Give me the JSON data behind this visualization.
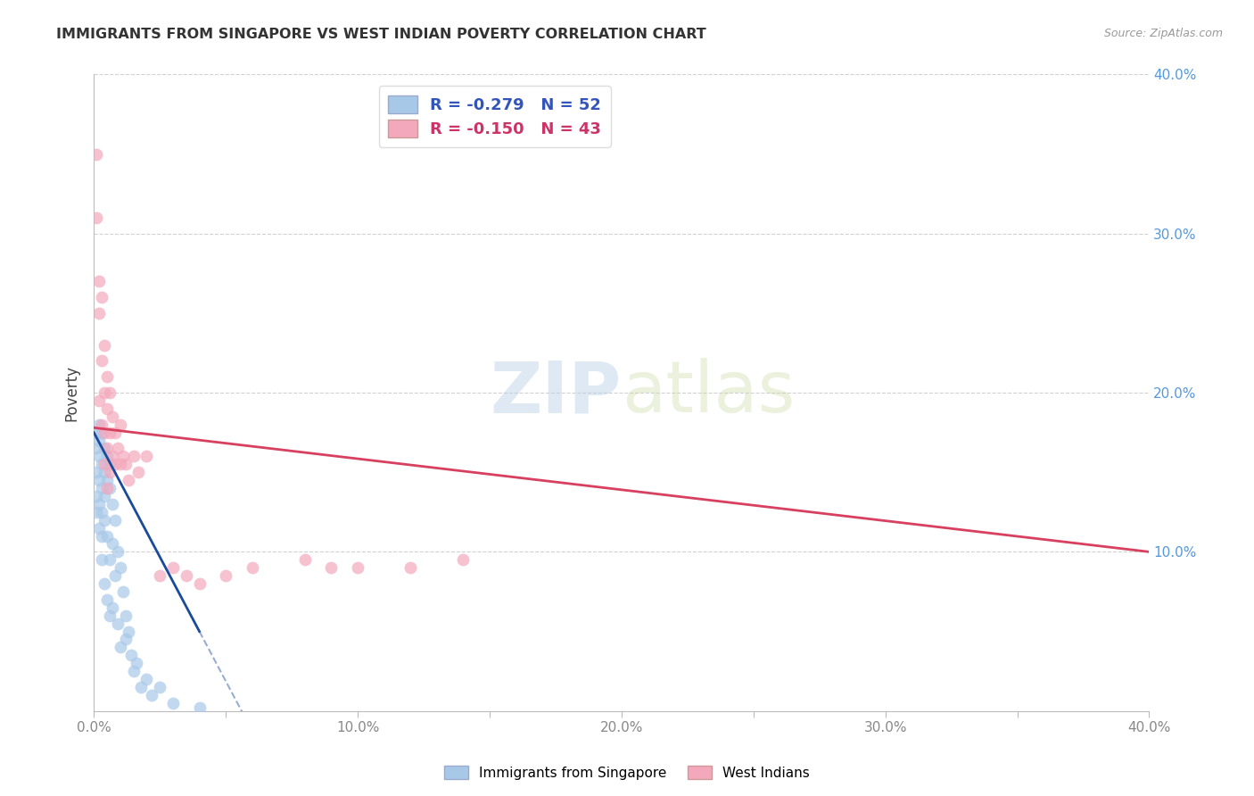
{
  "title": "IMMIGRANTS FROM SINGAPORE VS WEST INDIAN POVERTY CORRELATION CHART",
  "source": "Source: ZipAtlas.com",
  "ylabel": "Poverty",
  "xlim": [
    0.0,
    0.4
  ],
  "ylim": [
    0.0,
    0.4
  ],
  "xtick_labels": [
    "0.0%",
    "",
    "10.0%",
    "",
    "20.0%",
    "",
    "30.0%",
    "",
    "40.0%"
  ],
  "xtick_vals": [
    0.0,
    0.05,
    0.1,
    0.15,
    0.2,
    0.25,
    0.3,
    0.35,
    0.4
  ],
  "ytick_vals": [
    0.1,
    0.2,
    0.3,
    0.4
  ],
  "right_ytick_labels": [
    "10.0%",
    "20.0%",
    "30.0%",
    "40.0%"
  ],
  "legend1_label": "R = -0.279   N = 52",
  "legend2_label": "R = -0.150   N = 43",
  "scatter1_color": "#a8c8e8",
  "scatter2_color": "#f4a8bc",
  "line1_color": "#1a4a9a",
  "line2_color": "#d84060",
  "legend_color_blue": "#a8c8e8",
  "legend_color_pink": "#f4a8bc",
  "legend_text_color": "#3355bb",
  "legend_text_pink": "#cc3366",
  "watermark_zip": "ZIP",
  "watermark_atlas": "atlas",
  "singapore_x": [
    0.001,
    0.001,
    0.001,
    0.001,
    0.001,
    0.002,
    0.002,
    0.002,
    0.002,
    0.002,
    0.002,
    0.003,
    0.003,
    0.003,
    0.003,
    0.003,
    0.003,
    0.004,
    0.004,
    0.004,
    0.004,
    0.004,
    0.005,
    0.005,
    0.005,
    0.005,
    0.006,
    0.006,
    0.006,
    0.006,
    0.007,
    0.007,
    0.007,
    0.008,
    0.008,
    0.009,
    0.009,
    0.01,
    0.01,
    0.011,
    0.012,
    0.012,
    0.013,
    0.014,
    0.015,
    0.016,
    0.018,
    0.02,
    0.022,
    0.025,
    0.03,
    0.04
  ],
  "singapore_y": [
    0.175,
    0.165,
    0.15,
    0.135,
    0.125,
    0.18,
    0.17,
    0.16,
    0.145,
    0.13,
    0.115,
    0.175,
    0.155,
    0.14,
    0.125,
    0.11,
    0.095,
    0.165,
    0.15,
    0.135,
    0.12,
    0.08,
    0.16,
    0.145,
    0.11,
    0.07,
    0.155,
    0.14,
    0.095,
    0.06,
    0.13,
    0.105,
    0.065,
    0.12,
    0.085,
    0.1,
    0.055,
    0.09,
    0.04,
    0.075,
    0.06,
    0.045,
    0.05,
    0.035,
    0.025,
    0.03,
    0.015,
    0.02,
    0.01,
    0.015,
    0.005,
    0.002
  ],
  "westindian_x": [
    0.001,
    0.001,
    0.002,
    0.002,
    0.002,
    0.003,
    0.003,
    0.003,
    0.004,
    0.004,
    0.004,
    0.004,
    0.005,
    0.005,
    0.005,
    0.005,
    0.006,
    0.006,
    0.006,
    0.007,
    0.007,
    0.008,
    0.008,
    0.009,
    0.01,
    0.01,
    0.011,
    0.012,
    0.013,
    0.015,
    0.017,
    0.02,
    0.025,
    0.03,
    0.035,
    0.04,
    0.05,
    0.06,
    0.08,
    0.1,
    0.12,
    0.14,
    0.09
  ],
  "westindian_y": [
    0.35,
    0.31,
    0.27,
    0.25,
    0.195,
    0.26,
    0.22,
    0.18,
    0.23,
    0.2,
    0.175,
    0.155,
    0.21,
    0.19,
    0.165,
    0.14,
    0.2,
    0.175,
    0.15,
    0.185,
    0.16,
    0.175,
    0.155,
    0.165,
    0.18,
    0.155,
    0.16,
    0.155,
    0.145,
    0.16,
    0.15,
    0.16,
    0.085,
    0.09,
    0.085,
    0.08,
    0.085,
    0.09,
    0.095,
    0.09,
    0.09,
    0.095,
    0.09
  ],
  "sg_line_x0": 0.0,
  "sg_line_x1": 0.04,
  "sg_line_y0": 0.175,
  "sg_line_y1": 0.05,
  "sg_line_dash_x0": 0.04,
  "sg_line_dash_x1": 0.09,
  "wi_line_x0": 0.0,
  "wi_line_x1": 0.4,
  "wi_line_y0": 0.178,
  "wi_line_y1": 0.1
}
